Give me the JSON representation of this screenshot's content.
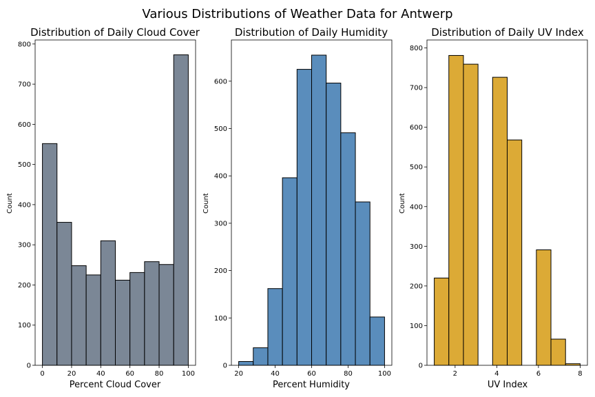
{
  "suptitle": "Various Distributions of Weather Data for Antwerp",
  "chart_data": [
    {
      "type": "bar",
      "title": "Distribution of Daily Cloud Cover",
      "xlabel": "Percent Cloud Cover",
      "ylabel": "Count",
      "color": "#7b8796",
      "bins": [
        [
          0,
          10
        ],
        [
          10,
          20
        ],
        [
          20,
          30
        ],
        [
          30,
          40
        ],
        [
          40,
          50
        ],
        [
          50,
          60
        ],
        [
          60,
          70
        ],
        [
          70,
          80
        ],
        [
          80,
          90
        ],
        [
          90,
          100
        ]
      ],
      "values": [
        552,
        356,
        248,
        225,
        310,
        212,
        231,
        258,
        251,
        773
      ],
      "xlim": [
        -5,
        105
      ],
      "ylim": [
        0,
        810
      ],
      "xticks": [
        0,
        20,
        40,
        60,
        80,
        100
      ],
      "yticks": [
        0,
        100,
        200,
        300,
        400,
        500,
        600,
        700,
        800
      ]
    },
    {
      "type": "bar",
      "title": "Distribution of Daily Humidity",
      "xlabel": "Percent Humidity",
      "ylabel": "Count",
      "color": "#5a8dbc",
      "bins": [
        [
          20,
          28
        ],
        [
          28,
          36
        ],
        [
          36,
          44
        ],
        [
          44,
          52
        ],
        [
          52,
          60
        ],
        [
          60,
          68
        ],
        [
          68,
          76
        ],
        [
          76,
          84
        ],
        [
          84,
          92
        ],
        [
          92,
          100
        ]
      ],
      "values": [
        8,
        37,
        162,
        396,
        625,
        655,
        596,
        491,
        345,
        102
      ],
      "xlim": [
        16,
        104
      ],
      "ylim": [
        0,
        687
      ],
      "xticks": [
        20,
        40,
        60,
        80,
        100
      ],
      "yticks": [
        0,
        100,
        200,
        300,
        400,
        500,
        600
      ]
    },
    {
      "type": "bar",
      "title": "Distribution of Daily UV Index",
      "xlabel": "UV Index",
      "ylabel": "Count",
      "color": "#dcaa36",
      "bins": [
        [
          1,
          1.7
        ],
        [
          1.7,
          2.4
        ],
        [
          2.4,
          3.1
        ],
        [
          3.1,
          3.8
        ],
        [
          3.8,
          4.5
        ],
        [
          4.5,
          5.2
        ],
        [
          5.2,
          5.9
        ],
        [
          5.9,
          6.6
        ],
        [
          6.6,
          7.3
        ],
        [
          7.3,
          8
        ]
      ],
      "values": [
        220,
        781,
        759,
        0,
        726,
        568,
        0,
        291,
        66,
        4
      ],
      "xlim": [
        0.65,
        8.35
      ],
      "ylim": [
        0,
        820
      ],
      "xticks": [
        2,
        4,
        6,
        8
      ],
      "yticks": [
        0,
        100,
        200,
        300,
        400,
        500,
        600,
        700,
        800
      ]
    }
  ]
}
